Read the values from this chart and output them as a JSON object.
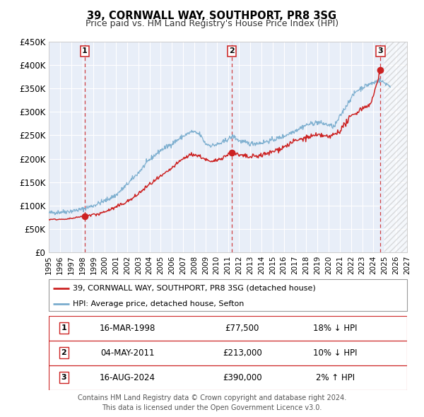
{
  "title": "39, CORNWALL WAY, SOUTHPORT, PR8 3SG",
  "subtitle": "Price paid vs. HM Land Registry's House Price Index (HPI)",
  "legend_red": "39, CORNWALL WAY, SOUTHPORT, PR8 3SG (detached house)",
  "legend_blue": "HPI: Average price, detached house, Sefton",
  "transactions": [
    {
      "num": 1,
      "date": "16-MAR-1998",
      "price": "£77,500",
      "hpi_rel": "18% ↓ HPI",
      "year": 1998.21,
      "val": 77500
    },
    {
      "num": 2,
      "date": "04-MAY-2011",
      "price": "£213,000",
      "hpi_rel": "10% ↓ HPI",
      "year": 2011.34,
      "val": 213000
    },
    {
      "num": 3,
      "date": "16-AUG-2024",
      "price": "£390,000",
      "hpi_rel": "2% ↑ HPI",
      "year": 2024.63,
      "val": 390000
    }
  ],
  "footer_line1": "Contains HM Land Registry data © Crown copyright and database right 2024.",
  "footer_line2": "This data is licensed under the Open Government Licence v3.0.",
  "xmin": 1995.0,
  "xmax": 2027.0,
  "ymin": 0,
  "ymax": 450000,
  "yticks": [
    0,
    50000,
    100000,
    150000,
    200000,
    250000,
    300000,
    350000,
    400000,
    450000
  ],
  "bg_color": "#e8eef8",
  "grid_color": "#ffffff",
  "red_color": "#cc2222",
  "blue_color": "#7aadce",
  "hatch_region_start": 2025.0,
  "title_fontsize": 10.5,
  "subtitle_fontsize": 9.0,
  "ytick_fontsize": 8.5,
  "xtick_fontsize": 7.5,
  "legend_fontsize": 8.0,
  "table_fontsize": 8.5,
  "footer_fontsize": 7.0
}
